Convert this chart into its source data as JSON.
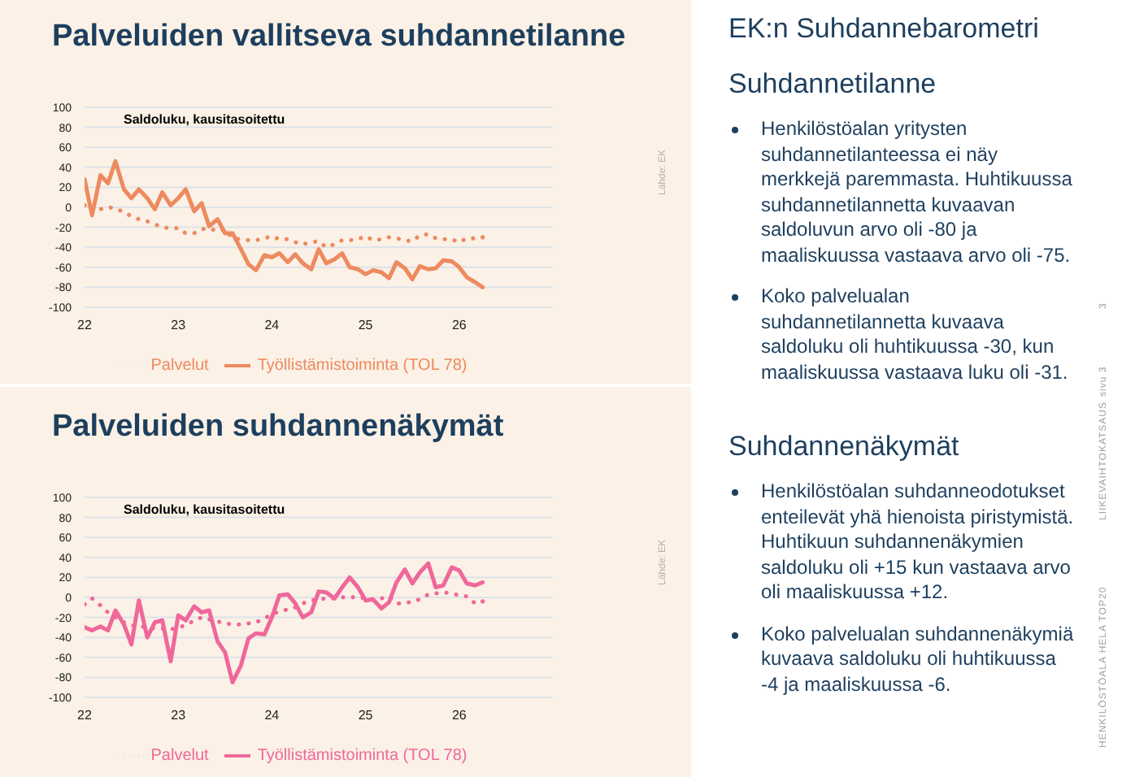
{
  "chart_data": [
    {
      "type": "line",
      "title": "Palveluiden vallitseva suhdannetilanne",
      "annotations": [
        "Saldoluku, kausitasoitettu",
        "Lähde: EK"
      ],
      "x": [
        22,
        22.08,
        22.17,
        22.25,
        22.33,
        22.42,
        22.5,
        22.58,
        22.67,
        22.75,
        22.83,
        22.92,
        23,
        23.08,
        23.17,
        23.25,
        23.33,
        23.42,
        23.5,
        23.58,
        23.67,
        23.75,
        23.83,
        23.92,
        24,
        24.08,
        24.17,
        24.25,
        24.33,
        24.42,
        24.5,
        24.58,
        24.67,
        24.75,
        24.83,
        24.92,
        25,
        25.08,
        25.17,
        25.25,
        25.33,
        25.42,
        25.5,
        25.58,
        25.67,
        25.75,
        25.83,
        25.92,
        26,
        26.08,
        26.17,
        26.25
      ],
      "series": [
        {
          "name": "Palvelut",
          "color": "#ed8a5f",
          "line_style": "dotted",
          "values": [
            2,
            -5,
            -2,
            0,
            -1,
            -5,
            -9,
            -12,
            -14,
            -17,
            -20,
            -21,
            -21,
            -26,
            -26,
            -22,
            -21,
            -24,
            -22,
            -31,
            -32,
            -33,
            -33,
            -31,
            -29,
            -32,
            -32,
            -35,
            -37,
            -35,
            -34,
            -40,
            -37,
            -33,
            -33,
            -32,
            -29,
            -33,
            -32,
            -30,
            -31,
            -33,
            -34,
            -28,
            -27,
            -31,
            -32,
            -32,
            -35,
            -31,
            -31,
            -30
          ]
        },
        {
          "name": "Työllistämistoiminta (TOL 78)",
          "color": "#ed8a5f",
          "line_style": "solid",
          "values": [
            28,
            -8,
            32,
            24,
            46,
            18,
            9,
            18,
            9,
            -2,
            15,
            2,
            9,
            18,
            -4,
            4,
            -19,
            -12,
            -26,
            -26,
            -42,
            -57,
            -63,
            -48,
            -50,
            -46,
            -55,
            -47,
            -56,
            -62,
            -42,
            -56,
            -52,
            -46,
            -60,
            -62,
            -67,
            -63,
            -65,
            -71,
            -55,
            -61,
            -72,
            -59,
            -62,
            -61,
            -53,
            -54,
            -60,
            -70,
            -75,
            -80
          ]
        }
      ],
      "xlim": [
        22,
        27
      ],
      "xticks": [
        22,
        23,
        24,
        25,
        26
      ],
      "ylim": [
        -100,
        100
      ],
      "yticks": [
        -100,
        -80,
        -60,
        -40,
        -20,
        0,
        20,
        40,
        60,
        80,
        100
      ],
      "grid": "y",
      "legend": "bottom"
    },
    {
      "type": "line",
      "title": "Palveluiden suhdannenäkymät",
      "annotations": [
        "Saldoluku, kausitasoitettu",
        "Lähde: EK"
      ],
      "x": [
        22,
        22.08,
        22.17,
        22.25,
        22.33,
        22.42,
        22.5,
        22.58,
        22.67,
        22.75,
        22.83,
        22.92,
        23,
        23.08,
        23.17,
        23.25,
        23.33,
        23.42,
        23.5,
        23.58,
        23.67,
        23.75,
        23.83,
        23.92,
        24,
        24.08,
        24.17,
        24.25,
        24.33,
        24.42,
        24.5,
        24.58,
        24.67,
        24.75,
        24.83,
        24.92,
        25,
        25.08,
        25.17,
        25.25,
        25.33,
        25.42,
        25.5,
        25.58,
        25.67,
        25.75,
        25.83,
        25.92,
        26,
        26.08,
        26.17,
        26.25
      ],
      "series": [
        {
          "name": "Palvelut",
          "color": "#f0679a",
          "line_style": "dotted",
          "values": [
            -7,
            -1,
            -8,
            -15,
            -20,
            -25,
            -28,
            -29,
            -30,
            -31,
            -31,
            -32,
            -30,
            -28,
            -23,
            -20,
            -22,
            -24,
            -26,
            -27,
            -27,
            -26,
            -25,
            -21,
            -17,
            -14,
            -12,
            -10,
            -6,
            -3,
            -2,
            -1,
            -1,
            0,
            1,
            -1,
            0,
            -2,
            -1,
            1,
            -6,
            -6,
            -4,
            -2,
            3,
            4,
            5,
            4,
            2,
            1,
            -6,
            -4
          ]
        },
        {
          "name": "Työllistämistoiminta (TOL 78)",
          "color": "#f0679a",
          "line_style": "solid",
          "values": [
            -30,
            -33,
            -29,
            -33,
            -13,
            -27,
            -47,
            -3,
            -40,
            -25,
            -23,
            -64,
            -18,
            -23,
            -9,
            -15,
            -13,
            -44,
            -55,
            -85,
            -68,
            -41,
            -36,
            -37,
            -20,
            2,
            3,
            -6,
            -20,
            -15,
            6,
            5,
            -1,
            10,
            20,
            10,
            -3,
            -2,
            -11,
            -5,
            15,
            28,
            14,
            25,
            34,
            10,
            12,
            30,
            27,
            14,
            12,
            15
          ]
        }
      ],
      "xlim": [
        22,
        27
      ],
      "xticks": [
        22,
        23,
        24,
        25,
        26
      ],
      "ylim": [
        -100,
        100
      ],
      "yticks": [
        -100,
        -80,
        -60,
        -40,
        -20,
        0,
        20,
        40,
        60,
        80,
        100
      ],
      "grid": "y",
      "legend": "bottom"
    },
    {
      "type": "other",
      "title": "EK:n Suhdannebarometri",
      "annotations": [
        "Suhdannetilanne",
        "Henkilöstöalan yritysten suhdannetilanteessa ei näy merkkejä paremmasta. Huhtikuussa suhdannetilannetta kuvaavan saldoluvun arvo oli -80 ja maaliskuussa vastaava arvo oli -75.",
        "Koko palvelualan suhdannetilannetta kuvaava saldoluku oli huhtikuussa -30, kun maaliskuussa vastaava luku oli -31.",
        "Suhdannenäkymät",
        "Henkilöstöalan suhdanneodotukset enteilevät yhä hienoista piristymistä. Huhtikuun suhdannenäkymien saldoluku oli +15 kun vastaava arvo oli maaliskuussa +12.",
        "Koko palvelualan suhdannenäkymiä kuvaava saldoluku oli huhtikuussa -4 ja maaliskuussa -6.",
        "3",
        "sivu 3",
        "LIIKEVAIHTOKATSAUS",
        "HENKILÖSTÖALA HELA TOP20"
      ]
    }
  ]
}
